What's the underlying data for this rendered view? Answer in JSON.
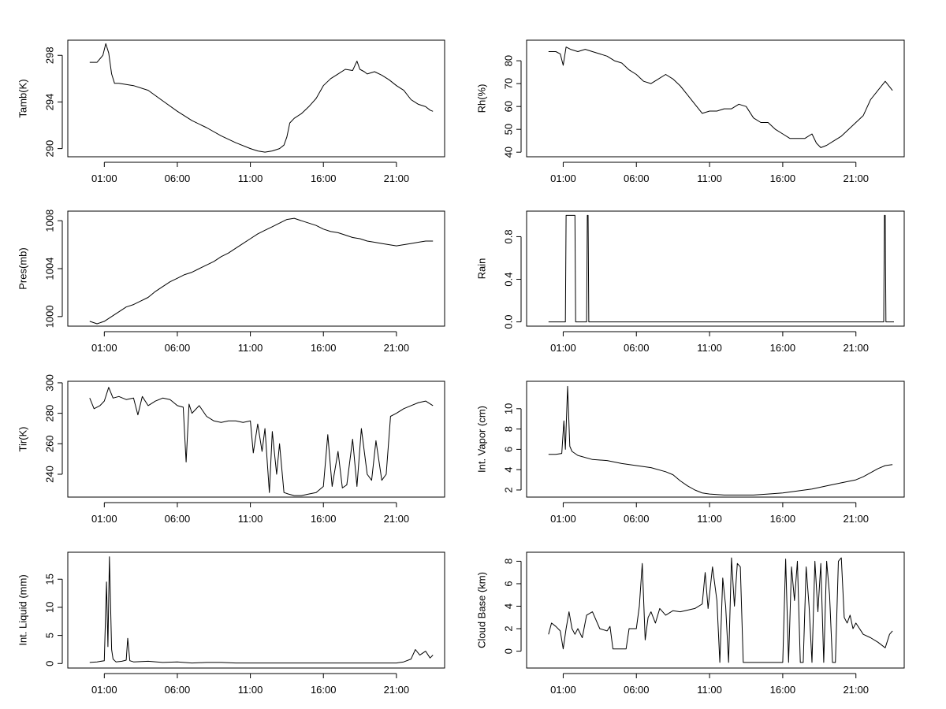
{
  "figure": {
    "background": "#ffffff",
    "line_color": "#000000"
  },
  "chart_data": [
    {
      "type": "line",
      "ylabel": "Tamb(K)",
      "xlim": [
        -1.5,
        24.3
      ],
      "x_ticks": [
        1,
        6,
        11,
        16,
        21
      ],
      "x_tick_labels": [
        "01:00",
        "06:00",
        "11:00",
        "16:00",
        "21:00"
      ],
      "ylim": [
        289.3,
        299.3
      ],
      "y_ticks": [
        290,
        294,
        298
      ],
      "x": [
        0,
        0.5,
        0.9,
        1.1,
        1.3,
        1.5,
        1.7,
        2,
        3,
        4,
        5,
        6,
        7,
        8,
        9,
        10,
        11,
        11.5,
        12,
        12.5,
        13,
        13.3,
        13.5,
        13.7,
        14,
        14.5,
        15,
        15.5,
        16,
        16.5,
        17,
        17.5,
        18,
        18.3,
        18.5,
        18.8,
        19,
        19.5,
        20,
        20.5,
        21,
        21.5,
        22,
        22.5,
        23,
        23.3,
        23.5
      ],
      "y": [
        297.4,
        297.4,
        298.0,
        299.0,
        298.2,
        296.4,
        295.6,
        295.6,
        295.4,
        295.0,
        294.1,
        293.2,
        292.4,
        291.8,
        291.1,
        290.5,
        290.0,
        289.8,
        289.7,
        289.8,
        290.0,
        290.3,
        291.0,
        292.2,
        292.6,
        293.0,
        293.6,
        294.3,
        295.4,
        296.0,
        296.4,
        296.8,
        296.7,
        297.5,
        296.8,
        296.6,
        296.4,
        296.6,
        296.3,
        295.9,
        295.4,
        295.0,
        294.2,
        293.8,
        293.6,
        293.3,
        293.2
      ]
    },
    {
      "type": "line",
      "ylabel": "Rh(%)",
      "xlim": [
        -1.5,
        24.3
      ],
      "x_ticks": [
        1,
        6,
        11,
        16,
        21
      ],
      "x_tick_labels": [
        "01:00",
        "06:00",
        "11:00",
        "16:00",
        "21:00"
      ],
      "ylim": [
        38,
        89
      ],
      "y_ticks": [
        40,
        50,
        60,
        70,
        80
      ],
      "x": [
        0,
        0.5,
        0.8,
        1.0,
        1.2,
        1.5,
        2,
        2.5,
        3,
        3.5,
        4,
        4.5,
        5,
        5.5,
        6,
        6.5,
        7,
        7.5,
        8,
        8.5,
        9,
        9.5,
        10,
        10.5,
        11,
        11.5,
        12,
        12.5,
        13,
        13.5,
        14,
        14.5,
        15,
        15.5,
        16,
        16.5,
        17,
        17.5,
        18,
        18.3,
        18.6,
        19,
        19.5,
        20,
        20.5,
        21,
        21.5,
        22,
        22.5,
        23,
        23.5
      ],
      "y": [
        84,
        84,
        83,
        78,
        86,
        85,
        84,
        85,
        84,
        83,
        82,
        80,
        79,
        76,
        74,
        71,
        70,
        72,
        74,
        72,
        69,
        65,
        61,
        57,
        58,
        58,
        59,
        59,
        61,
        60,
        55,
        53,
        53,
        50,
        48,
        46,
        46,
        46,
        48,
        44,
        42,
        43,
        45,
        47,
        50,
        53,
        56,
        63,
        67,
        71,
        67
      ]
    },
    {
      "type": "line",
      "ylabel": "Pres(mb)",
      "xlim": [
        -1.5,
        24.3
      ],
      "x_ticks": [
        1,
        6,
        11,
        16,
        21
      ],
      "x_tick_labels": [
        "01:00",
        "06:00",
        "11:00",
        "16:00",
        "21:00"
      ],
      "ylim": [
        999.2,
        1008.8
      ],
      "y_ticks": [
        1000,
        1004,
        1008
      ],
      "x": [
        0,
        0.5,
        1,
        1.5,
        2,
        2.5,
        3,
        3.5,
        4,
        4.5,
        5,
        5.5,
        6,
        6.5,
        7,
        7.5,
        8,
        8.5,
        9,
        9.5,
        10,
        10.5,
        11,
        11.5,
        12,
        12.5,
        13,
        13.5,
        14,
        14.5,
        15,
        15.5,
        16,
        16.5,
        17,
        17.5,
        18,
        18.5,
        19,
        19.5,
        20,
        20.5,
        21,
        21.5,
        22,
        22.5,
        23,
        23.5
      ],
      "y": [
        999.6,
        999.4,
        999.6,
        1000.0,
        1000.4,
        1000.8,
        1001.0,
        1001.3,
        1001.6,
        1002.1,
        1002.5,
        1002.9,
        1003.2,
        1003.5,
        1003.7,
        1004.0,
        1004.3,
        1004.6,
        1005.0,
        1005.3,
        1005.7,
        1006.1,
        1006.5,
        1006.9,
        1007.2,
        1007.5,
        1007.8,
        1008.1,
        1008.2,
        1008.0,
        1007.8,
        1007.6,
        1007.3,
        1007.1,
        1007.0,
        1006.8,
        1006.6,
        1006.5,
        1006.3,
        1006.2,
        1006.1,
        1006.0,
        1005.9,
        1006.0,
        1006.1,
        1006.2,
        1006.3,
        1006.3
      ]
    },
    {
      "type": "line",
      "ylabel": "Rain",
      "xlim": [
        -1.5,
        24.3
      ],
      "x_ticks": [
        1,
        6,
        11,
        16,
        21
      ],
      "x_tick_labels": [
        "01:00",
        "06:00",
        "11:00",
        "16:00",
        "21:00"
      ],
      "ylim": [
        -0.04,
        1.04
      ],
      "y_ticks": [
        0.0,
        0.4,
        0.8
      ],
      "y_tick_labels": [
        "0.0",
        "0.4",
        "0.8"
      ],
      "x": [
        0,
        1.15,
        1.2,
        1.8,
        1.85,
        2.6,
        2.65,
        2.7,
        2.75,
        22.9,
        22.95,
        23.0,
        23.05,
        23.6
      ],
      "y": [
        0,
        0,
        1,
        1,
        0,
        0,
        1,
        1,
        0,
        0,
        1,
        1,
        0,
        0
      ]
    },
    {
      "type": "line",
      "ylabel": "Tir(K)",
      "xlim": [
        -1.5,
        24.3
      ],
      "x_ticks": [
        1,
        6,
        11,
        16,
        21
      ],
      "x_tick_labels": [
        "01:00",
        "06:00",
        "11:00",
        "16:00",
        "21:00"
      ],
      "ylim": [
        225,
        301
      ],
      "y_ticks": [
        240,
        260,
        280,
        300
      ],
      "x": [
        0,
        0.3,
        0.7,
        1,
        1.3,
        1.6,
        2,
        2.5,
        3,
        3.3,
        3.6,
        4,
        4.5,
        5,
        5.5,
        6,
        6.4,
        6.6,
        6.8,
        7,
        7.5,
        8,
        8.5,
        9,
        9.5,
        10,
        10.5,
        11,
        11.2,
        11.5,
        11.8,
        12,
        12.3,
        12.5,
        12.8,
        13,
        13.3,
        13.6,
        14,
        14.5,
        15,
        15.5,
        16,
        16.3,
        16.6,
        17,
        17.3,
        17.6,
        18,
        18.3,
        18.6,
        19,
        19.3,
        19.6,
        20,
        20.3,
        20.6,
        21,
        21.5,
        22,
        22.5,
        23,
        23.5
      ],
      "y": [
        290,
        283,
        285,
        288,
        297,
        290,
        291,
        289,
        290,
        279,
        291,
        285,
        288,
        290,
        289,
        285,
        284,
        248,
        286,
        280,
        285,
        278,
        275,
        274,
        275,
        275,
        274,
        275,
        254,
        273,
        255,
        270,
        228,
        268,
        240,
        260,
        228,
        227,
        226,
        226,
        227,
        228,
        232,
        266,
        232,
        255,
        231,
        233,
        263,
        232,
        270,
        240,
        236,
        262,
        236,
        240,
        278,
        280,
        283,
        285,
        287,
        288,
        285
      ]
    },
    {
      "type": "line",
      "ylabel": "Int. Vapor (cm)",
      "xlim": [
        -1.5,
        24.3
      ],
      "x_ticks": [
        1,
        6,
        11,
        16,
        21
      ],
      "x_tick_labels": [
        "01:00",
        "06:00",
        "11:00",
        "16:00",
        "21:00"
      ],
      "ylim": [
        1.3,
        12.7
      ],
      "y_ticks": [
        2,
        4,
        6,
        8,
        10
      ],
      "x": [
        0,
        0.5,
        0.9,
        1.05,
        1.15,
        1.3,
        1.45,
        1.6,
        2,
        3,
        4,
        5,
        6,
        7,
        8,
        8.5,
        9,
        9.5,
        10,
        10.5,
        11,
        12,
        13,
        14,
        15,
        16,
        17,
        18,
        19,
        20,
        21,
        21.5,
        22,
        22.5,
        23,
        23.5
      ],
      "y": [
        5.5,
        5.5,
        5.6,
        8.8,
        6.0,
        12.2,
        6.3,
        5.8,
        5.4,
        5.0,
        4.9,
        4.6,
        4.4,
        4.2,
        3.8,
        3.5,
        2.9,
        2.4,
        2.0,
        1.7,
        1.6,
        1.5,
        1.5,
        1.5,
        1.6,
        1.7,
        1.9,
        2.1,
        2.4,
        2.7,
        3.0,
        3.3,
        3.7,
        4.1,
        4.4,
        4.5
      ]
    },
    {
      "type": "line",
      "ylabel": "Int. Liquid (mm)",
      "xlim": [
        -1.5,
        24.3
      ],
      "x_ticks": [
        1,
        6,
        11,
        16,
        21
      ],
      "x_tick_labels": [
        "01:00",
        "06:00",
        "11:00",
        "16:00",
        "21:00"
      ],
      "ylim": [
        -0.8,
        19.8
      ],
      "y_ticks": [
        0,
        5,
        10,
        15
      ],
      "x": [
        0,
        0.5,
        1.0,
        1.15,
        1.25,
        1.35,
        1.5,
        1.6,
        1.8,
        2.2,
        2.5,
        2.6,
        2.75,
        3,
        4,
        5,
        6,
        7,
        8,
        9,
        10,
        11,
        12,
        13,
        14,
        15,
        16,
        17,
        18,
        19,
        20,
        21,
        21.5,
        22,
        22.3,
        22.6,
        23,
        23.3,
        23.5
      ],
      "y": [
        0.2,
        0.3,
        0.5,
        14.5,
        3.0,
        19.0,
        2.5,
        0.8,
        0.3,
        0.4,
        0.6,
        4.5,
        0.5,
        0.3,
        0.4,
        0.2,
        0.3,
        0.1,
        0.2,
        0.2,
        0.1,
        0.1,
        0.1,
        0.1,
        0.1,
        0.1,
        0.1,
        0.1,
        0.1,
        0.1,
        0.1,
        0.1,
        0.3,
        0.8,
        2.5,
        1.5,
        2.2,
        1.0,
        1.5
      ]
    },
    {
      "type": "line",
      "ylabel": "Cloud Base (km)",
      "xlim": [
        -1.5,
        24.3
      ],
      "x_ticks": [
        1,
        6,
        11,
        16,
        21
      ],
      "x_tick_labels": [
        "01:00",
        "06:00",
        "11:00",
        "16:00",
        "21:00"
      ],
      "ylim": [
        -1.5,
        8.8
      ],
      "y_ticks": [
        0,
        2,
        4,
        6,
        8
      ],
      "x": [
        0,
        0.2,
        0.5,
        0.8,
        1.0,
        1.2,
        1.4,
        1.6,
        1.8,
        2.0,
        2.3,
        2.6,
        3.0,
        3.5,
        4.0,
        4.2,
        4.4,
        5.0,
        5.3,
        5.5,
        6.0,
        6.2,
        6.4,
        6.6,
        6.8,
        7.0,
        7.3,
        7.6,
        8.0,
        8.5,
        9,
        10,
        10.5,
        10.7,
        10.9,
        11.2,
        11.5,
        11.7,
        11.9,
        12.1,
        12.3,
        12.5,
        12.7,
        12.9,
        13.1,
        13.3,
        13.6,
        14,
        15,
        15.5,
        16,
        16.2,
        16.4,
        16.6,
        16.8,
        17.0,
        17.2,
        17.4,
        17.6,
        17.8,
        18.0,
        18.2,
        18.4,
        18.6,
        18.8,
        19.0,
        19.2,
        19.4,
        19.6,
        19.8,
        20.0,
        20.2,
        20.4,
        20.6,
        20.8,
        21.0,
        21.5,
        22,
        22.5,
        23,
        23.3,
        23.5
      ],
      "y": [
        1.5,
        2.5,
        2.2,
        1.8,
        0.2,
        2.0,
        3.5,
        2.0,
        1.5,
        2.0,
        1.2,
        3.2,
        3.5,
        2.0,
        1.8,
        2.2,
        0.2,
        0.2,
        0.2,
        2.0,
        2.0,
        4.0,
        7.8,
        1.0,
        3.0,
        3.5,
        2.5,
        3.8,
        3.2,
        3.6,
        3.5,
        3.8,
        4.2,
        7.0,
        3.8,
        7.5,
        4.5,
        -1.0,
        6.5,
        4.0,
        -1.0,
        8.3,
        4.0,
        7.8,
        7.5,
        -1.0,
        -1.0,
        -1.0,
        -1.0,
        -1.0,
        -1.0,
        8.2,
        -1.0,
        7.5,
        4.5,
        8.0,
        -1.0,
        -1.0,
        7.5,
        4.0,
        -1.0,
        8.0,
        3.5,
        7.8,
        -1.0,
        8.0,
        5.0,
        -1.0,
        -1.0,
        8.0,
        8.3,
        3.0,
        2.5,
        3.2,
        2.0,
        2.5,
        1.5,
        1.2,
        0.8,
        0.3,
        1.5,
        1.8
      ]
    }
  ]
}
